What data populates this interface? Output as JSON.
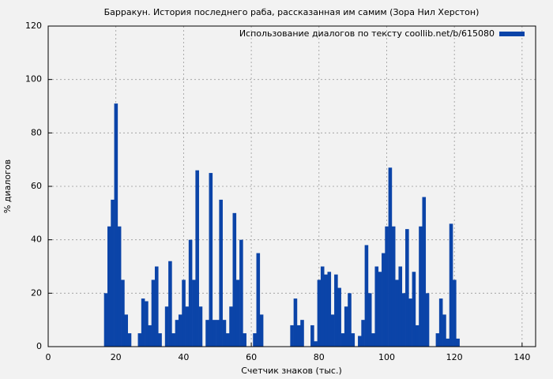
{
  "chart_data": {
    "type": "bar",
    "title": "Барракун. История последнего раба, рассказанная им самим (Зора Нил Херстон)",
    "x_label": "Счетчик знаков (тыс.)",
    "y_label": "% диалогов",
    "x": [
      17,
      18,
      19,
      20,
      21,
      22,
      23,
      24,
      25,
      26,
      27,
      28,
      29,
      30,
      31,
      32,
      33,
      34,
      35,
      36,
      37,
      38,
      39,
      40,
      41,
      42,
      43,
      44,
      45,
      46,
      47,
      48,
      49,
      50,
      51,
      52,
      53,
      54,
      55,
      56,
      57,
      58,
      59,
      60,
      61,
      62,
      63,
      64,
      65,
      66,
      67,
      68,
      69,
      70,
      71,
      72,
      73,
      74,
      75,
      76,
      77,
      78,
      79,
      80,
      81,
      82,
      83,
      84,
      85,
      86,
      87,
      88,
      89,
      90,
      91,
      92,
      93,
      94,
      95,
      96,
      97,
      98,
      99,
      100,
      101,
      102,
      103,
      104,
      105,
      106,
      107,
      108,
      109,
      110,
      111,
      112,
      113,
      114,
      115,
      116,
      117,
      118,
      119,
      120,
      121
    ],
    "series": [
      {
        "name": "Использование диалогов по тексту coollib.net/b/615080",
        "color": "#0b44a8",
        "values": [
          20,
          45,
          55,
          91,
          45,
          25,
          12,
          5,
          0,
          0,
          5,
          18,
          17,
          8,
          25,
          30,
          5,
          0,
          15,
          32,
          5,
          10,
          12,
          25,
          15,
          40,
          25,
          66,
          15,
          0,
          10,
          65,
          10,
          10,
          55,
          10,
          5,
          15,
          50,
          25,
          40,
          5,
          0,
          0,
          5,
          35,
          12,
          0,
          0,
          0,
          0,
          0,
          0,
          0,
          0,
          8,
          18,
          8,
          10,
          0,
          0,
          8,
          2,
          25,
          30,
          27,
          28,
          12,
          27,
          22,
          5,
          15,
          20,
          5,
          0,
          4,
          10,
          38,
          20,
          5,
          30,
          28,
          35,
          45,
          67,
          45,
          25,
          30,
          20,
          44,
          18,
          28,
          8,
          45,
          56,
          20,
          0,
          0,
          5,
          18,
          12,
          3,
          46,
          25,
          3
        ]
      }
    ],
    "xlim": [
      0,
      144
    ],
    "xticks": [
      0,
      20,
      40,
      60,
      80,
      100,
      120,
      140
    ],
    "ylim": [
      0,
      120
    ],
    "yticks": [
      0,
      20,
      40,
      60,
      80,
      100,
      120
    ],
    "grid": true,
    "legend": "top-right"
  }
}
